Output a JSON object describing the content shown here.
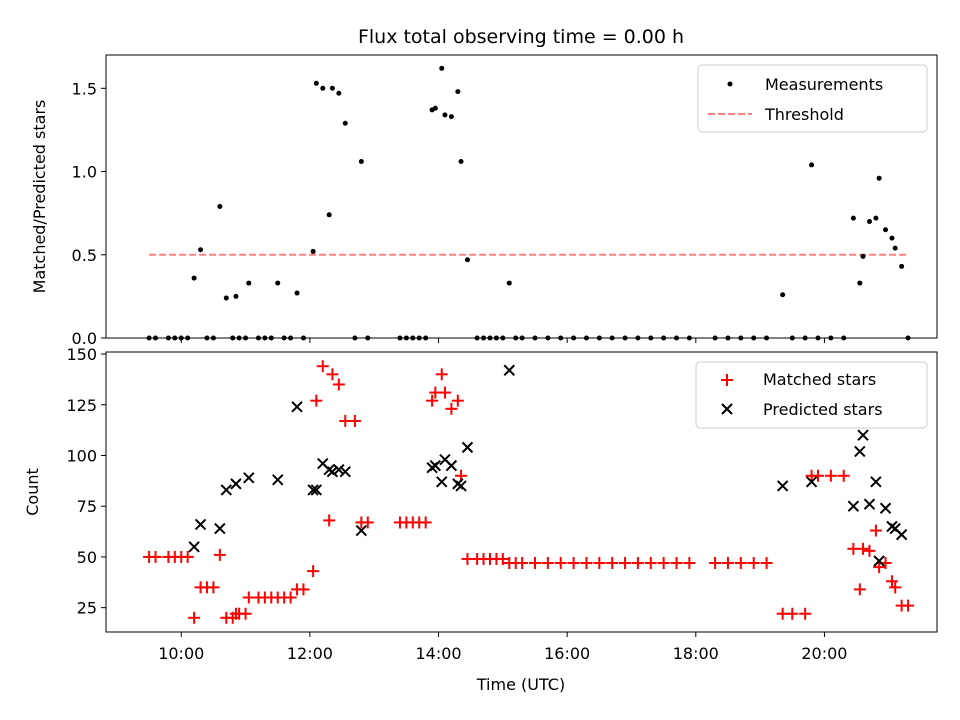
{
  "chart_data": {
    "type": "scatter",
    "title": "Flux total observing time = 0.00 h",
    "xlabel": "Time (UTC)",
    "x_ticks": [
      "10:00",
      "12:00",
      "14:00",
      "16:00",
      "18:00",
      "20:00"
    ],
    "x_tick_hours": [
      10,
      12,
      14,
      16,
      18,
      20
    ],
    "xlim": [
      8.83,
      21.75
    ],
    "panels": [
      {
        "ylabel": "Matched/Predicted stars",
        "ylim": [
          0,
          1.7
        ],
        "y_ticks": [
          "0.0",
          "0.5",
          "1.0",
          "1.5"
        ],
        "y_tick_values": [
          0,
          0.5,
          1.0,
          1.5
        ],
        "legend_position": "upper right",
        "threshold": {
          "name": "Threshold",
          "value": 0.5,
          "x_start": 9.5,
          "x_end": 21.3,
          "color": "#ff8080",
          "style": "dashed"
        },
        "series": [
          {
            "name": "Measurements",
            "marker": "dot",
            "color": "#000000",
            "points": [
              [
                9.5,
                0
              ],
              [
                9.6,
                0
              ],
              [
                9.8,
                0
              ],
              [
                9.9,
                0
              ],
              [
                10.0,
                0
              ],
              [
                10.1,
                0
              ],
              [
                10.2,
                0.36
              ],
              [
                10.3,
                0.53
              ],
              [
                10.4,
                0
              ],
              [
                10.5,
                0
              ],
              [
                10.6,
                0.79
              ],
              [
                10.7,
                0.24
              ],
              [
                10.8,
                0
              ],
              [
                10.85,
                0.25
              ],
              [
                10.9,
                0
              ],
              [
                11.0,
                0
              ],
              [
                11.05,
                0.33
              ],
              [
                11.2,
                0
              ],
              [
                11.3,
                0
              ],
              [
                11.4,
                0
              ],
              [
                11.5,
                0.33
              ],
              [
                11.6,
                0
              ],
              [
                11.7,
                0
              ],
              [
                11.8,
                0.27
              ],
              [
                11.9,
                0
              ],
              [
                12.05,
                0.52
              ],
              [
                12.1,
                1.53
              ],
              [
                12.2,
                1.5
              ],
              [
                12.3,
                0.74
              ],
              [
                12.35,
                1.5
              ],
              [
                12.45,
                1.47
              ],
              [
                12.55,
                1.29
              ],
              [
                12.7,
                0
              ],
              [
                12.8,
                1.06
              ],
              [
                12.9,
                0
              ],
              [
                13.4,
                0
              ],
              [
                13.5,
                0
              ],
              [
                13.6,
                0
              ],
              [
                13.7,
                0
              ],
              [
                13.8,
                0
              ],
              [
                13.9,
                1.37
              ],
              [
                13.95,
                1.38
              ],
              [
                14.05,
                1.62
              ],
              [
                14.1,
                1.34
              ],
              [
                14.2,
                1.33
              ],
              [
                14.3,
                1.48
              ],
              [
                14.35,
                1.06
              ],
              [
                14.45,
                0.47
              ],
              [
                14.6,
                0
              ],
              [
                14.7,
                0
              ],
              [
                14.8,
                0
              ],
              [
                14.9,
                0
              ],
              [
                15.0,
                0
              ],
              [
                15.1,
                0.33
              ],
              [
                15.2,
                0
              ],
              [
                15.3,
                0
              ],
              [
                15.5,
                0
              ],
              [
                15.7,
                0
              ],
              [
                15.9,
                0
              ],
              [
                16.1,
                0
              ],
              [
                16.3,
                0
              ],
              [
                16.5,
                0
              ],
              [
                16.7,
                0
              ],
              [
                16.9,
                0
              ],
              [
                17.1,
                0
              ],
              [
                17.3,
                0
              ],
              [
                17.5,
                0
              ],
              [
                17.7,
                0
              ],
              [
                17.9,
                0
              ],
              [
                18.3,
                0
              ],
              [
                18.5,
                0
              ],
              [
                18.7,
                0
              ],
              [
                18.9,
                0
              ],
              [
                19.1,
                0
              ],
              [
                19.35,
                0.26
              ],
              [
                19.5,
                0
              ],
              [
                19.7,
                0
              ],
              [
                19.8,
                1.04
              ],
              [
                19.9,
                0
              ],
              [
                20.1,
                0
              ],
              [
                20.3,
                0
              ],
              [
                20.45,
                0.72
              ],
              [
                20.55,
                0.33
              ],
              [
                20.6,
                0.49
              ],
              [
                20.7,
                0.7
              ],
              [
                20.8,
                0.72
              ],
              [
                20.85,
                0.96
              ],
              [
                20.95,
                0.65
              ],
              [
                21.05,
                0.6
              ],
              [
                21.1,
                0.54
              ],
              [
                21.2,
                0.43
              ],
              [
                21.3,
                0
              ]
            ]
          }
        ]
      },
      {
        "ylabel": "Count",
        "ylim": [
          13,
          151
        ],
        "y_ticks": [
          "25",
          "50",
          "75",
          "100",
          "125",
          "150"
        ],
        "y_tick_values": [
          25,
          50,
          75,
          100,
          125,
          150
        ],
        "legend_position": "upper right",
        "series": [
          {
            "name": "Matched stars",
            "marker": "plus",
            "color": "#ff0000",
            "points": [
              [
                9.5,
                50
              ],
              [
                9.6,
                50
              ],
              [
                9.8,
                50
              ],
              [
                9.9,
                50
              ],
              [
                10.0,
                50
              ],
              [
                10.1,
                50
              ],
              [
                10.2,
                20
              ],
              [
                10.3,
                35
              ],
              [
                10.4,
                35
              ],
              [
                10.5,
                35
              ],
              [
                10.6,
                51
              ],
              [
                10.7,
                20
              ],
              [
                10.8,
                20
              ],
              [
                10.85,
                22
              ],
              [
                10.9,
                22
              ],
              [
                11.0,
                22
              ],
              [
                11.05,
                30
              ],
              [
                11.2,
                30
              ],
              [
                11.3,
                30
              ],
              [
                11.4,
                30
              ],
              [
                11.5,
                30
              ],
              [
                11.6,
                30
              ],
              [
                11.7,
                30
              ],
              [
                11.8,
                34
              ],
              [
                11.9,
                34
              ],
              [
                12.05,
                43
              ],
              [
                12.1,
                127
              ],
              [
                12.2,
                144
              ],
              [
                12.3,
                68
              ],
              [
                12.35,
                140
              ],
              [
                12.45,
                135
              ],
              [
                12.55,
                117
              ],
              [
                12.7,
                117
              ],
              [
                12.8,
                67
              ],
              [
                12.9,
                67
              ],
              [
                13.4,
                67
              ],
              [
                13.5,
                67
              ],
              [
                13.6,
                67
              ],
              [
                13.7,
                67
              ],
              [
                13.8,
                67
              ],
              [
                13.9,
                127
              ],
              [
                13.95,
                131
              ],
              [
                14.05,
                140
              ],
              [
                14.1,
                131
              ],
              [
                14.2,
                123
              ],
              [
                14.3,
                127
              ],
              [
                14.35,
                90
              ],
              [
                14.45,
                49
              ],
              [
                14.6,
                49
              ],
              [
                14.7,
                49
              ],
              [
                14.8,
                49
              ],
              [
                14.9,
                49
              ],
              [
                15.0,
                49
              ],
              [
                15.1,
                47
              ],
              [
                15.2,
                47
              ],
              [
                15.3,
                47
              ],
              [
                15.5,
                47
              ],
              [
                15.7,
                47
              ],
              [
                15.9,
                47
              ],
              [
                16.1,
                47
              ],
              [
                16.3,
                47
              ],
              [
                16.5,
                47
              ],
              [
                16.7,
                47
              ],
              [
                16.9,
                47
              ],
              [
                17.1,
                47
              ],
              [
                17.3,
                47
              ],
              [
                17.5,
                47
              ],
              [
                17.7,
                47
              ],
              [
                17.9,
                47
              ],
              [
                18.3,
                47
              ],
              [
                18.5,
                47
              ],
              [
                18.7,
                47
              ],
              [
                18.9,
                47
              ],
              [
                19.1,
                47
              ],
              [
                19.35,
                22
              ],
              [
                19.5,
                22
              ],
              [
                19.7,
                22
              ],
              [
                19.8,
                90
              ],
              [
                19.9,
                90
              ],
              [
                20.1,
                90
              ],
              [
                20.3,
                90
              ],
              [
                20.45,
                54
              ],
              [
                20.55,
                34
              ],
              [
                20.6,
                54
              ],
              [
                20.7,
                53
              ],
              [
                20.8,
                63
              ],
              [
                20.85,
                45
              ],
              [
                20.95,
                47
              ],
              [
                21.05,
                38
              ],
              [
                21.1,
                35
              ],
              [
                21.2,
                26
              ],
              [
                21.3,
                26
              ]
            ]
          },
          {
            "name": "Predicted stars",
            "marker": "x",
            "color": "#000000",
            "points": [
              [
                10.2,
                55
              ],
              [
                10.3,
                66
              ],
              [
                10.6,
                64
              ],
              [
                10.7,
                83
              ],
              [
                10.85,
                86
              ],
              [
                11.05,
                89
              ],
              [
                11.5,
                88
              ],
              [
                11.8,
                124
              ],
              [
                12.05,
                83
              ],
              [
                12.1,
                83
              ],
              [
                12.2,
                96
              ],
              [
                12.3,
                93
              ],
              [
                12.35,
                92
              ],
              [
                12.45,
                93
              ],
              [
                12.55,
                92
              ],
              [
                12.8,
                63
              ],
              [
                13.9,
                94
              ],
              [
                13.95,
                95
              ],
              [
                14.05,
                87
              ],
              [
                14.1,
                98
              ],
              [
                14.2,
                95
              ],
              [
                14.3,
                86
              ],
              [
                14.35,
                85
              ],
              [
                14.45,
                104
              ],
              [
                15.1,
                142
              ],
              [
                19.35,
                85
              ],
              [
                19.8,
                87
              ],
              [
                20.45,
                75
              ],
              [
                20.55,
                102
              ],
              [
                20.6,
                110
              ],
              [
                20.7,
                76
              ],
              [
                20.8,
                87
              ],
              [
                20.85,
                48
              ],
              [
                20.95,
                74
              ],
              [
                21.05,
                65
              ],
              [
                21.1,
                64
              ],
              [
                21.2,
                61
              ]
            ]
          }
        ]
      }
    ]
  }
}
